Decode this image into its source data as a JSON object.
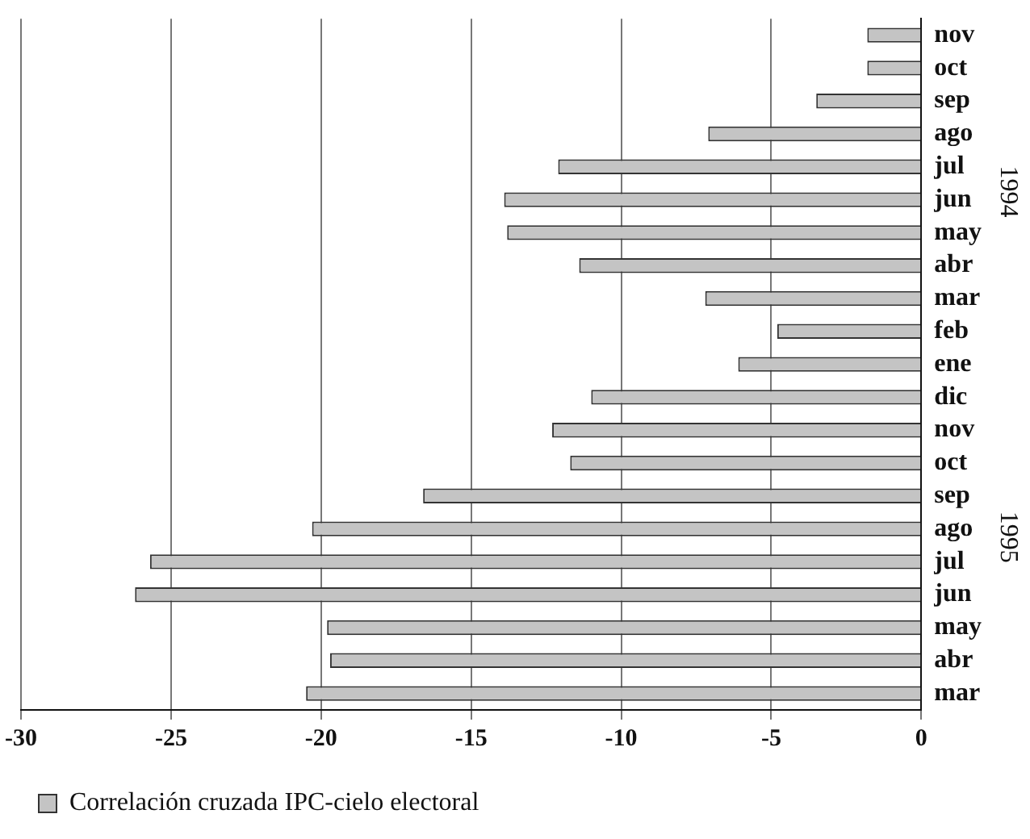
{
  "chart_data": {
    "type": "bar",
    "orientation": "horizontal",
    "categories": [
      "nov",
      "oct",
      "sep",
      "ago",
      "jul",
      "jun",
      "may",
      "abr",
      "mar",
      "feb",
      "ene",
      "dic",
      "nov",
      "oct",
      "sep",
      "ago",
      "jul",
      "jun",
      "may",
      "abr",
      "mar"
    ],
    "series": [
      {
        "name": "Correlación cruzada IPC-cielo electoral",
        "color": "#c4c4c4",
        "values": [
          -1.8,
          -1.8,
          -3.5,
          -7.1,
          -12.1,
          -13.9,
          -13.8,
          -11.4,
          -7.2,
          -4.8,
          -6.1,
          -11.0,
          -12.3,
          -11.7,
          -16.6,
          -20.3,
          -25.7,
          -26.2,
          -19.8,
          -19.7,
          -20.5
        ]
      }
    ],
    "xlim": [
      -30,
      0
    ],
    "xticks": [
      -30,
      -25,
      -20,
      -15,
      -10,
      -5,
      0
    ],
    "grid": "x",
    "legend": "bottom",
    "annotations": [
      "1994",
      "1995"
    ]
  }
}
